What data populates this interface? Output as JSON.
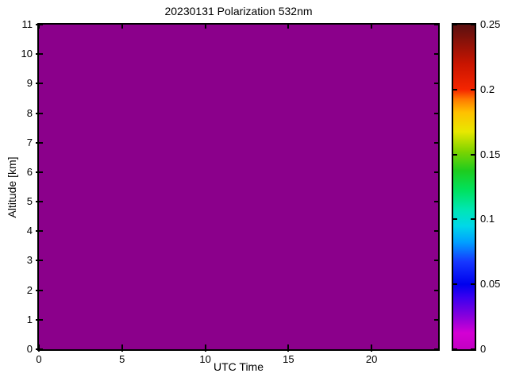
{
  "chart_data": {
    "type": "heatmap",
    "title": "20230131 Polarization 532nm",
    "xlabel": "UTC Time",
    "ylabel": "Altitude [km]",
    "xlim": [
      0,
      24
    ],
    "ylim": [
      0,
      11
    ],
    "xticks": [
      0,
      5,
      10,
      15,
      20
    ],
    "yticks": [
      0,
      1,
      2,
      3,
      4,
      5,
      6,
      7,
      8,
      9,
      10,
      11
    ],
    "grid": false,
    "uniform_value": 0,
    "fill_color": "#8B008B",
    "background_color": "#ffffff",
    "axis_color": "#000000",
    "colorbar": {
      "position": "right",
      "min": 0,
      "max": 0.25,
      "ticks": [
        0,
        0.05,
        0.1,
        0.15,
        0.2,
        0.25
      ],
      "tick_labels": [
        "0",
        "0.05",
        "0.1",
        "0.15",
        "0.2",
        "0.25"
      ],
      "colormap_stops": [
        {
          "pos": 0.0,
          "color": "#C200C2"
        },
        {
          "pos": 0.05,
          "color": "#D400D4"
        },
        {
          "pos": 0.1,
          "color": "#8A00DC"
        },
        {
          "pos": 0.16,
          "color": "#3A00F0"
        },
        {
          "pos": 0.2,
          "color": "#0000EE"
        },
        {
          "pos": 0.27,
          "color": "#1638FF"
        },
        {
          "pos": 0.33,
          "color": "#00A0FF"
        },
        {
          "pos": 0.38,
          "color": "#00D8E8"
        },
        {
          "pos": 0.43,
          "color": "#00E6B4"
        },
        {
          "pos": 0.49,
          "color": "#00E25E"
        },
        {
          "pos": 0.55,
          "color": "#1ECC1E"
        },
        {
          "pos": 0.61,
          "color": "#7FD400"
        },
        {
          "pos": 0.67,
          "color": "#E8E800"
        },
        {
          "pos": 0.73,
          "color": "#FFC000"
        },
        {
          "pos": 0.77,
          "color": "#FF7A00"
        },
        {
          "pos": 0.8,
          "color": "#F52500"
        },
        {
          "pos": 0.88,
          "color": "#C81400"
        },
        {
          "pos": 1.0,
          "color": "#5A1010"
        }
      ]
    }
  }
}
